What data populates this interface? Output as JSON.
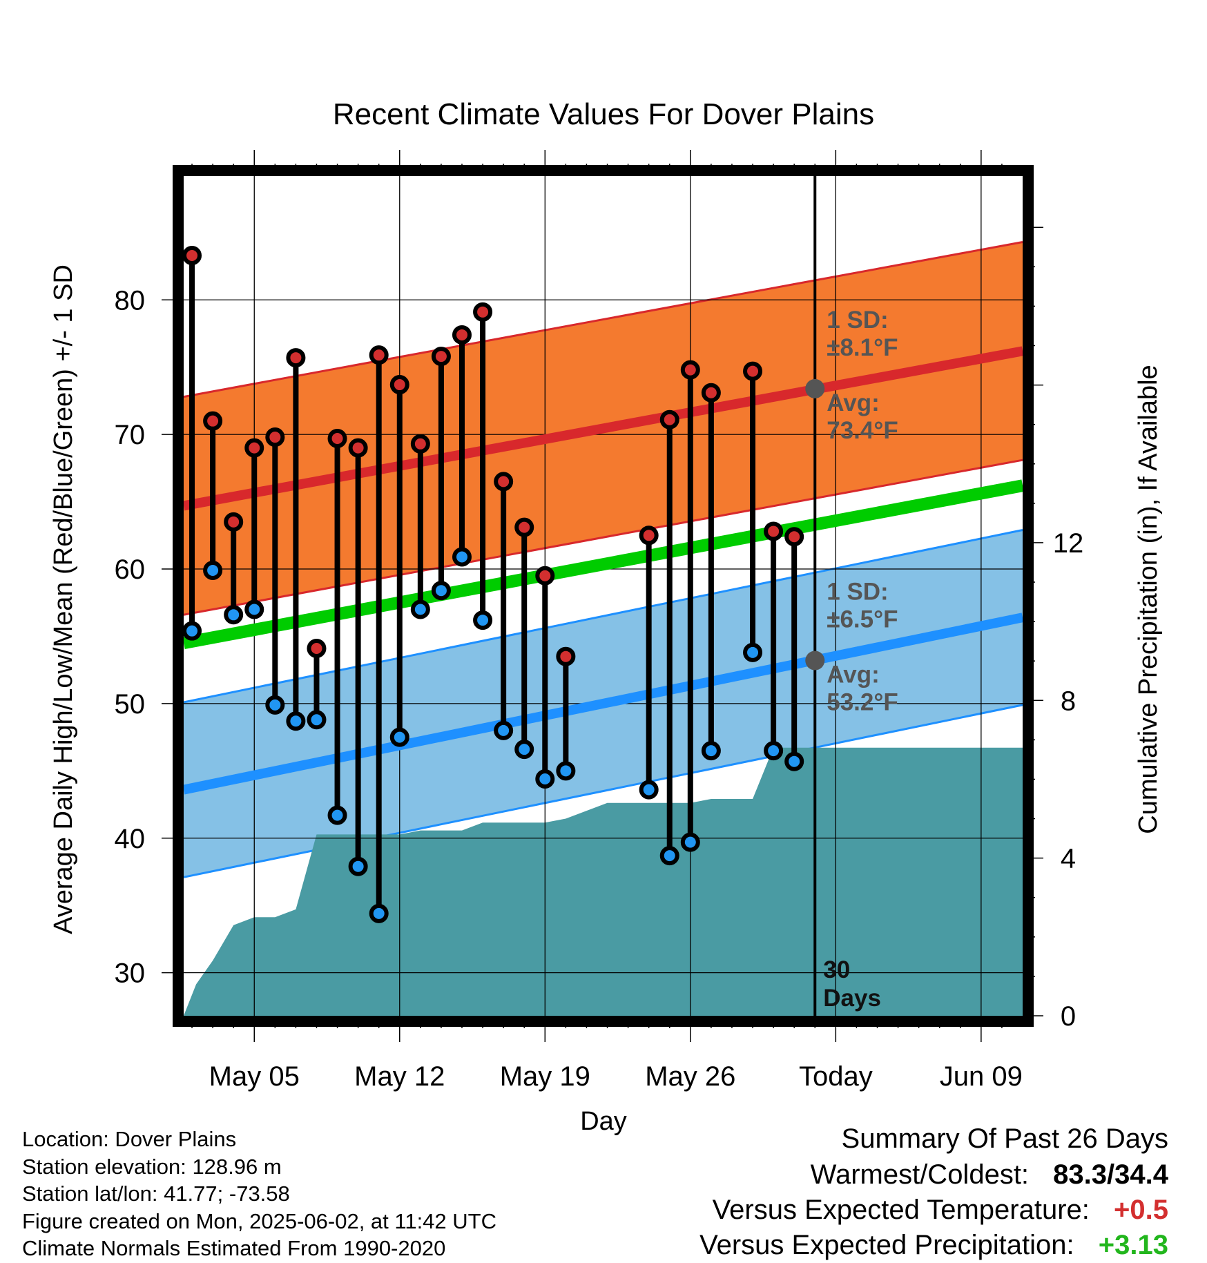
{
  "chart_data": {
    "type": "line",
    "title": "Recent Climate Values For Dover Plains",
    "xlabel": "Day",
    "ylabel": "Average Daily High/Low/Mean (Red/Blue/Green) +/- 1 SD",
    "y2label": "Cumulative Precipitation (in), If Available",
    "x_ticks": [
      "May 05",
      "May 12",
      "May 19",
      "May 26",
      "Today",
      "Jun 09"
    ],
    "y_ticks": [
      30,
      40,
      50,
      60,
      70,
      80
    ],
    "y2_ticks": [
      0,
      4,
      8,
      12
    ],
    "ylim": [
      26.8,
      89.2
    ],
    "y2lim": [
      0,
      21.3
    ],
    "days": [
      {
        "day": 1,
        "high": 83.3,
        "low": 55.4
      },
      {
        "day": 2,
        "high": 71.0,
        "low": 59.9
      },
      {
        "day": 3,
        "high": 63.5,
        "low": 56.6
      },
      {
        "day": 4,
        "high": 69.0,
        "low": 57.0
      },
      {
        "day": 5,
        "high": 69.8,
        "low": 49.9
      },
      {
        "day": 6,
        "high": 75.7,
        "low": 48.7
      },
      {
        "day": 7,
        "high": 54.1,
        "low": 48.8
      },
      {
        "day": 8,
        "high": 69.7,
        "low": 41.7
      },
      {
        "day": 9,
        "high": 69.0,
        "low": 37.9
      },
      {
        "day": 10,
        "high": 75.9,
        "low": 34.4
      },
      {
        "day": 11,
        "high": 73.7,
        "low": 47.5
      },
      {
        "day": 12,
        "high": 69.3,
        "low": 57.0
      },
      {
        "day": 13,
        "high": 75.8,
        "low": 58.4
      },
      {
        "day": 14,
        "high": 77.4,
        "low": 60.9
      },
      {
        "day": 15,
        "high": 79.1,
        "low": 56.2
      },
      {
        "day": 16,
        "high": 66.5,
        "low": 48.0
      },
      {
        "day": 17,
        "high": 63.1,
        "low": 46.6
      },
      {
        "day": 18,
        "high": 59.5,
        "low": 44.4
      },
      {
        "day": 19,
        "high": 53.5,
        "low": 45.0
      },
      {
        "day": 23,
        "high": 62.5,
        "low": 43.6
      },
      {
        "day": 24,
        "high": 71.1,
        "low": 38.7
      },
      {
        "day": 25,
        "high": 74.8,
        "low": 39.7
      },
      {
        "day": 26,
        "high": 73.1,
        "low": 46.5
      },
      {
        "day": 28,
        "high": 74.7,
        "low": 53.8
      },
      {
        "day": 29,
        "high": 62.8,
        "low": 46.5
      },
      {
        "day": 30,
        "high": 62.4,
        "low": 45.7
      }
    ],
    "normal_high": {
      "start": 64.7,
      "end": 76.2,
      "sd": 8.1
    },
    "normal_low": {
      "start": 43.6,
      "end": 56.4,
      "sd": 6.5
    },
    "normal_mean": {
      "start": 54.5,
      "end": 66.2
    },
    "precip_cumulative": [
      [
        0.6,
        0.0
      ],
      [
        1.2,
        0.8
      ],
      [
        2.0,
        1.4
      ],
      [
        3.0,
        2.3
      ],
      [
        4.0,
        2.5
      ],
      [
        5.0,
        2.5
      ],
      [
        6.0,
        2.7
      ],
      [
        7.0,
        4.6
      ],
      [
        8.0,
        4.6
      ],
      [
        9.0,
        4.6
      ],
      [
        10.0,
        4.6
      ],
      [
        11.0,
        4.6
      ],
      [
        12.0,
        4.7
      ],
      [
        13.0,
        4.7
      ],
      [
        14.0,
        4.7
      ],
      [
        15.0,
        4.9
      ],
      [
        16.0,
        4.9
      ],
      [
        17.0,
        4.9
      ],
      [
        18.0,
        4.9
      ],
      [
        19.0,
        5.0
      ],
      [
        20.0,
        5.2
      ],
      [
        21.0,
        5.4
      ],
      [
        22.0,
        5.4
      ],
      [
        23.0,
        5.4
      ],
      [
        24.0,
        5.4
      ],
      [
        25.0,
        5.4
      ],
      [
        26.0,
        5.5
      ],
      [
        27.0,
        5.5
      ],
      [
        28.0,
        5.5
      ],
      [
        29.0,
        6.8
      ],
      [
        30.0,
        6.8
      ],
      [
        41.0,
        6.8
      ]
    ],
    "today_day": 31,
    "annotations": {
      "high_sd_label": "1 SD:",
      "high_sd_value": "±8.1°F",
      "high_avg_label": "Avg:",
      "high_avg_value": "73.4°F",
      "high_avg": 73.4,
      "low_sd_label": "1 SD:",
      "low_sd_value": "±6.5°F",
      "low_avg_label": "Avg:",
      "low_avg_value": "53.2°F",
      "low_avg": 53.2,
      "window_num": "30",
      "window_unit": "Days"
    },
    "colors": {
      "high_band": "#f47a2f",
      "high_line": "#d8282c",
      "low_band": "#85c1e6",
      "low_line": "#1e90ff",
      "mean_line": "#00cc00",
      "precip": "#4a9ba3",
      "high_dot": "#d32f2f",
      "low_dot": "#2196f3",
      "avg_marker": "#555555",
      "annotation_text": "#555555"
    }
  },
  "footer": {
    "location": "Location: Dover Plains",
    "elevation": "Station elevation: 128.96 m",
    "latlon": "Station lat/lon: 41.77; -73.58",
    "created": "Figure created on Mon, 2025-06-02, at 11:42 UTC",
    "normals": "Climate Normals Estimated From 1990-2020"
  },
  "summary": {
    "title": "Summary Of Past 26 Days",
    "warm_cold_label": "Warmest/Coldest:",
    "warm_cold_value": "83.3/34.4",
    "temp_label": "Versus Expected Temperature:",
    "temp_value": "+0.5",
    "precip_label": "Versus Expected Precipitation:",
    "precip_value": "+3.13"
  }
}
